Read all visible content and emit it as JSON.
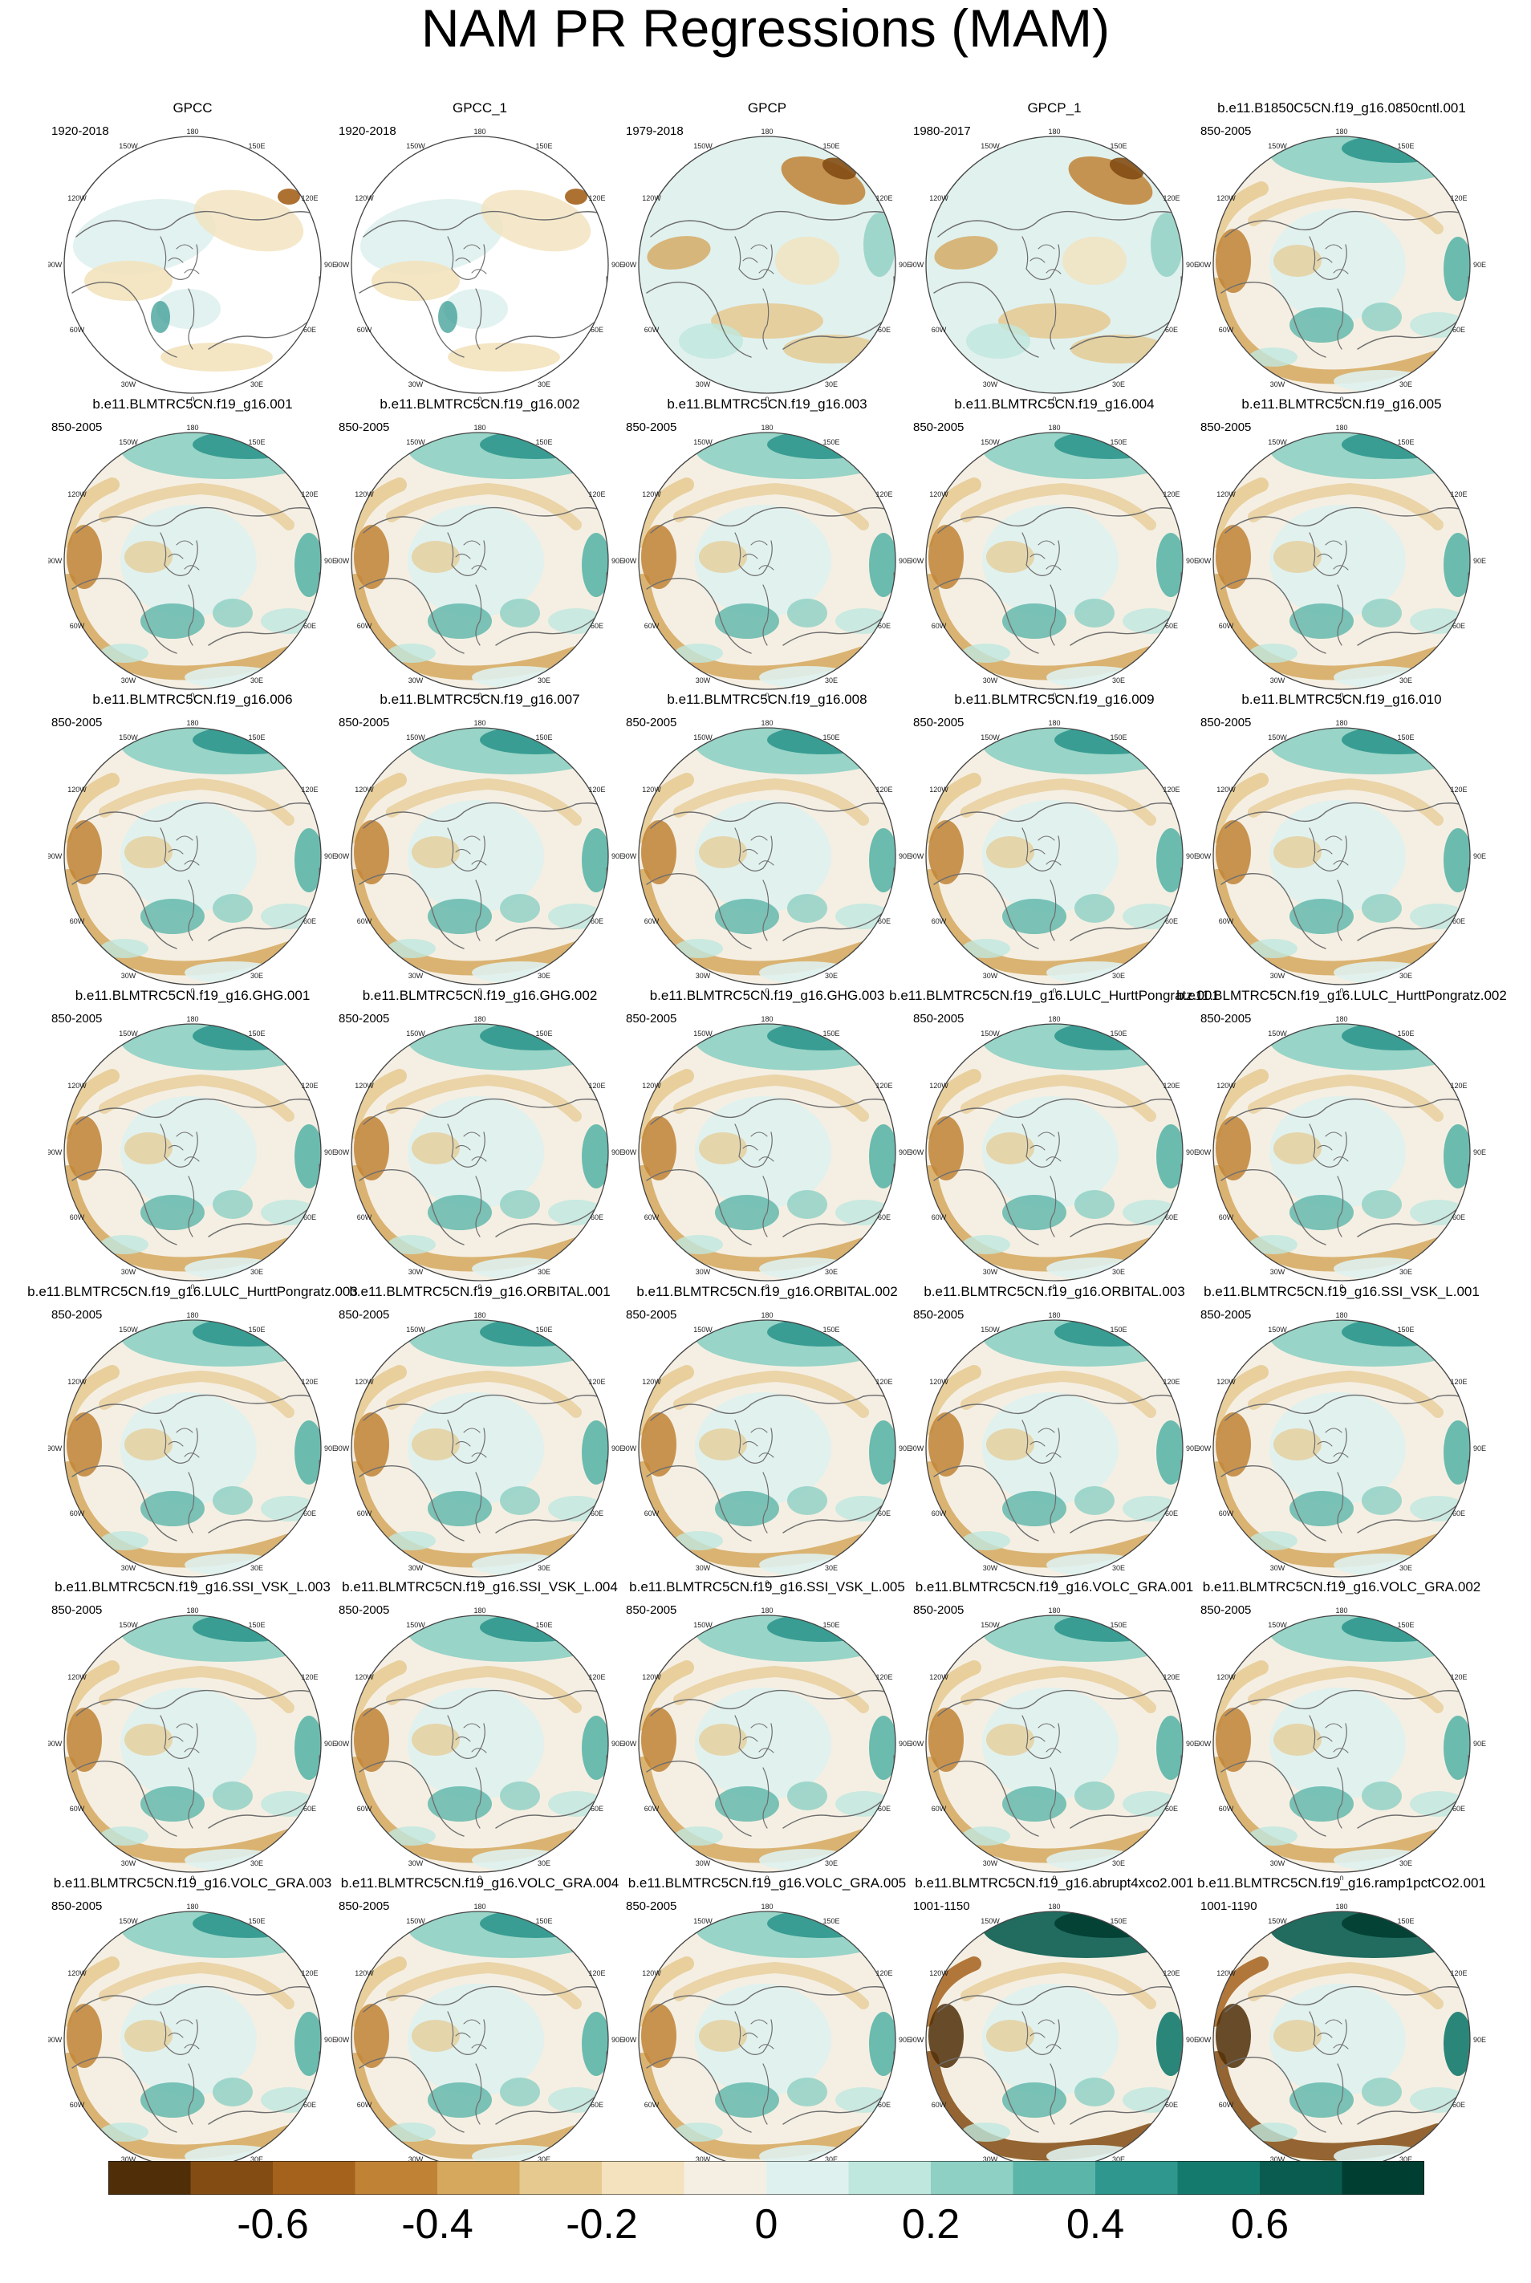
{
  "figure": {
    "title": "NAM PR Regressions (MAM)"
  },
  "map_labels": {
    "lon_top": "180",
    "lon_ul": "150W",
    "lon_ur": "150E",
    "lon_l1": "120W",
    "lon_r1": "120E",
    "lon_l2": "90W",
    "lon_r2": "90E",
    "lon_l3": "60W",
    "lon_r3": "60E",
    "lon_bl": "30W",
    "lon_br": "30E",
    "lon_bottom": "0"
  },
  "panels": [
    {
      "title": "GPCC",
      "period": "1920-2018",
      "kind": "obs_gpcc"
    },
    {
      "title": "GPCC_1",
      "period": "1920-2018",
      "kind": "obs_gpcc"
    },
    {
      "title": "GPCP",
      "period": "1979-2018",
      "kind": "obs_gpcp"
    },
    {
      "title": "GPCP_1",
      "period": "1980-2017",
      "kind": "obs_gpcp"
    },
    {
      "title": "b.e11.B1850C5CN.f19_g16.0850cntl.001",
      "period": "850-2005",
      "kind": "model"
    },
    {
      "title": "b.e11.BLMTRC5CN.f19_g16.001",
      "period": "850-2005",
      "kind": "model"
    },
    {
      "title": "b.e11.BLMTRC5CN.f19_g16.002",
      "period": "850-2005",
      "kind": "model"
    },
    {
      "title": "b.e11.BLMTRC5CN.f19_g16.003",
      "period": "850-2005",
      "kind": "model"
    },
    {
      "title": "b.e11.BLMTRC5CN.f19_g16.004",
      "period": "850-2005",
      "kind": "model"
    },
    {
      "title": "b.e11.BLMTRC5CN.f19_g16.005",
      "period": "850-2005",
      "kind": "model"
    },
    {
      "title": "b.e11.BLMTRC5CN.f19_g16.006",
      "period": "850-2005",
      "kind": "model"
    },
    {
      "title": "b.e11.BLMTRC5CN.f19_g16.007",
      "period": "850-2005",
      "kind": "model"
    },
    {
      "title": "b.e11.BLMTRC5CN.f19_g16.008",
      "period": "850-2005",
      "kind": "model"
    },
    {
      "title": "b.e11.BLMTRC5CN.f19_g16.009",
      "period": "850-2005",
      "kind": "model"
    },
    {
      "title": "b.e11.BLMTRC5CN.f19_g16.010",
      "period": "850-2005",
      "kind": "model"
    },
    {
      "title": "b.e11.BLMTRC5CN.f19_g16.GHG.001",
      "period": "850-2005",
      "kind": "model"
    },
    {
      "title": "b.e11.BLMTRC5CN.f19_g16.GHG.002",
      "period": "850-2005",
      "kind": "model"
    },
    {
      "title": "b.e11.BLMTRC5CN.f19_g16.GHG.003",
      "period": "850-2005",
      "kind": "model"
    },
    {
      "title": "b.e11.BLMTRC5CN.f19_g16.LULC_HurttPongratz.001",
      "period": "850-2005",
      "kind": "model"
    },
    {
      "title": "b.e11.BLMTRC5CN.f19_g16.LULC_HurttPongratz.002",
      "period": "850-2005",
      "kind": "model"
    },
    {
      "title": "b.e11.BLMTRC5CN.f19_g16.LULC_HurttPongratz.003",
      "period": "850-2005",
      "kind": "model"
    },
    {
      "title": "b.e11.BLMTRC5CN.f19_g16.ORBITAL.001",
      "period": "850-2005",
      "kind": "model"
    },
    {
      "title": "b.e11.BLMTRC5CN.f19_g16.ORBITAL.002",
      "period": "850-2005",
      "kind": "model"
    },
    {
      "title": "b.e11.BLMTRC5CN.f19_g16.ORBITAL.003",
      "period": "850-2005",
      "kind": "model"
    },
    {
      "title": "b.e11.BLMTRC5CN.f19_g16.SSI_VSK_L.001",
      "period": "850-2005",
      "kind": "model"
    },
    {
      "title": "b.e11.BLMTRC5CN.f19_g16.SSI_VSK_L.003",
      "period": "850-2005",
      "kind": "model"
    },
    {
      "title": "b.e11.BLMTRC5CN.f19_g16.SSI_VSK_L.004",
      "period": "850-2005",
      "kind": "model"
    },
    {
      "title": "b.e11.BLMTRC5CN.f19_g16.SSI_VSK_L.005",
      "period": "850-2005",
      "kind": "model"
    },
    {
      "title": "b.e11.BLMTRC5CN.f19_g16.VOLC_GRA.001",
      "period": "850-2005",
      "kind": "model"
    },
    {
      "title": "b.e11.BLMTRC5CN.f19_g16.VOLC_GRA.002",
      "period": "850-2005",
      "kind": "model"
    },
    {
      "title": "b.e11.BLMTRC5CN.f19_g16.VOLC_GRA.003",
      "period": "850-2005",
      "kind": "model"
    },
    {
      "title": "b.e11.BLMTRC5CN.f19_g16.VOLC_GRA.004",
      "period": "850-2005",
      "kind": "model"
    },
    {
      "title": "b.e11.BLMTRC5CN.f19_g16.VOLC_GRA.005",
      "period": "850-2005",
      "kind": "model"
    },
    {
      "title": "b.e11.BLMTRC5CN.f19_g16.abrupt4xco2.001",
      "period": "1001-1150",
      "kind": "model_strong"
    },
    {
      "title": "b.e11.BLMTRC5CN.f19_g16.ramp1pctCO2.001",
      "period": "1001-1190",
      "kind": "model_strong"
    }
  ],
  "colorbar": {
    "colors": [
      "#4f2e08",
      "#834c13",
      "#a4621c",
      "#c08235",
      "#d5a85e",
      "#e5c98f",
      "#f3e2bd",
      "#f5efe3",
      "#dff1ee",
      "#bfe7de",
      "#8ed0c3",
      "#5cb5a9",
      "#2f978d",
      "#157a6e",
      "#0a5c50",
      "#013e32"
    ],
    "tick_labels": [
      "-0.6",
      "-0.4",
      "-0.2",
      "0",
      "0.2",
      "0.4",
      "0.6"
    ],
    "tick_values": [
      -0.6,
      -0.4,
      -0.2,
      0,
      0.2,
      0.4,
      0.6
    ],
    "levels": [
      -0.7,
      -0.6,
      -0.5,
      -0.4,
      -0.3,
      -0.2,
      -0.1,
      0,
      0.1,
      0.2,
      0.3,
      0.4,
      0.5,
      0.6,
      0.7
    ]
  },
  "chart_data": {
    "type": "heatmap",
    "title": "NAM PR Regressions (MAM)",
    "projection": "north polar stereographic",
    "panel_count": 35,
    "layout": "7 rows x 5 columns",
    "colorbar_range": [
      -0.7,
      0.7
    ],
    "colorbar_ticks": [
      -0.6,
      -0.4,
      -0.2,
      0,
      0.2,
      0.4,
      0.6
    ],
    "regions": {
      "pacific_high_lat_wet_band": 0.4,
      "north_atlantic_dry_arc": -0.35,
      "arctic_center": 0.05,
      "subtropical_atlantic_wet": 0.3
    }
  }
}
